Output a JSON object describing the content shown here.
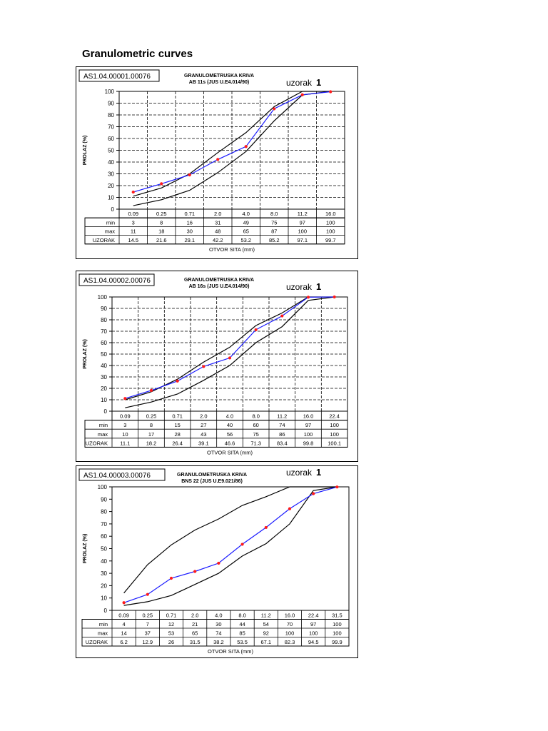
{
  "page": {
    "title": "Granulometric curves"
  },
  "charts": [
    {
      "id": "AS1.04.00001.00076",
      "heading": [
        "GRANULOMETRUSKA KRIVA",
        "AB 11s (JUS U.E4.014/90)"
      ],
      "sample_label": "uzorak",
      "sample_no": "1",
      "ylabel": "PROLAZ (%)",
      "xlabel": "OTVOR SITA (mm)",
      "row_labels": [
        "min",
        "max",
        "UZORAK"
      ]
    },
    {
      "id": "AS1.04.00002.00076",
      "heading": [
        "GRANULOMETRUSKA KRIVA",
        "AB 16s (JUS U.E4.014/90)"
      ],
      "sample_label": "uzorak",
      "sample_no": "1",
      "ylabel": "PROLAZ (%)",
      "xlabel": "OTVOR SITA (mm)",
      "row_labels": [
        "min",
        "max",
        "UZORAK"
      ]
    },
    {
      "id": "AS1.04.00003.00076",
      "heading": [
        "GRANULOMETRUSKA KRIVA",
        "BNS 22 (JUS U.E9.021/86)"
      ],
      "sample_label": "uzorak",
      "sample_no": "1",
      "ylabel": "PROLAZ (%)",
      "xlabel": "OTVOR SITA (mm)",
      "row_labels": [
        "min",
        "max",
        "UZORAK"
      ]
    }
  ],
  "chart_data": [
    {
      "type": "line",
      "categories": [
        "0.09",
        "0.25",
        "0.71",
        "2.0",
        "4.0",
        "8.0",
        "11.2",
        "16.0"
      ],
      "yticks": [
        0,
        10,
        20,
        30,
        40,
        50,
        60,
        70,
        80,
        90,
        100
      ],
      "ylim": [
        0,
        100
      ],
      "grid": true,
      "series": [
        {
          "name": "min",
          "values": [
            "3",
            "8",
            "16",
            "31",
            "49",
            "75",
            "97",
            "100"
          ],
          "color": "#000000"
        },
        {
          "name": "max",
          "values": [
            "11",
            "18",
            "30",
            "48",
            "65",
            "87",
            "100",
            "100"
          ],
          "color": "#000000"
        },
        {
          "name": "UZORAK",
          "values": [
            "14.5",
            "21.6",
            "29.1",
            "42.2",
            "53.2",
            "85.2",
            "97.1",
            "99.7"
          ],
          "color": "#1a1aff",
          "marker_color": "#ff1a1a"
        }
      ]
    },
    {
      "type": "line",
      "categories": [
        "0.09",
        "0.25",
        "0.71",
        "2.0",
        "4.0",
        "8.0",
        "11.2",
        "16.0",
        "22.4"
      ],
      "yticks": [
        0,
        10,
        20,
        30,
        40,
        50,
        60,
        70,
        80,
        90,
        100
      ],
      "ylim": [
        0,
        100
      ],
      "grid": true,
      "series": [
        {
          "name": "min",
          "values": [
            "3",
            "8",
            "15",
            "27",
            "40",
            "60",
            "74",
            "97",
            "100"
          ],
          "color": "#000000"
        },
        {
          "name": "max",
          "values": [
            "10",
            "17",
            "28",
            "43",
            "56",
            "75",
            "86",
            "100",
            "100"
          ],
          "color": "#000000"
        },
        {
          "name": "UZORAK",
          "values": [
            "11.1",
            "18.2",
            "26.4",
            "39.1",
            "46.6",
            "71.3",
            "83.4",
            "99.8",
            "100.1"
          ],
          "color": "#1a1aff",
          "marker_color": "#ff1a1a"
        }
      ]
    },
    {
      "type": "line",
      "categories": [
        "0.09",
        "0.25",
        "0.71",
        "2.0",
        "4.0",
        "8.0",
        "11.2",
        "16.0",
        "22.4",
        "31.5"
      ],
      "yticks": [
        0,
        10,
        20,
        30,
        40,
        50,
        60,
        70,
        80,
        90,
        100
      ],
      "ylim": [
        0,
        100
      ],
      "grid": false,
      "series": [
        {
          "name": "min",
          "values": [
            "4",
            "7",
            "12",
            "21",
            "30",
            "44",
            "54",
            "70",
            "97",
            "100"
          ],
          "color": "#000000"
        },
        {
          "name": "max",
          "values": [
            "14",
            "37",
            "53",
            "65",
            "74",
            "85",
            "92",
            "100",
            "100",
            "100"
          ],
          "color": "#000000"
        },
        {
          "name": "UZORAK",
          "values": [
            "6.2",
            "12.9",
            "26",
            "31.5",
            "38.2",
            "53.5",
            "67.1",
            "82.3",
            "94.5",
            "99.9"
          ],
          "color": "#1a1aff",
          "marker_color": "#ff1a1a"
        }
      ]
    }
  ]
}
